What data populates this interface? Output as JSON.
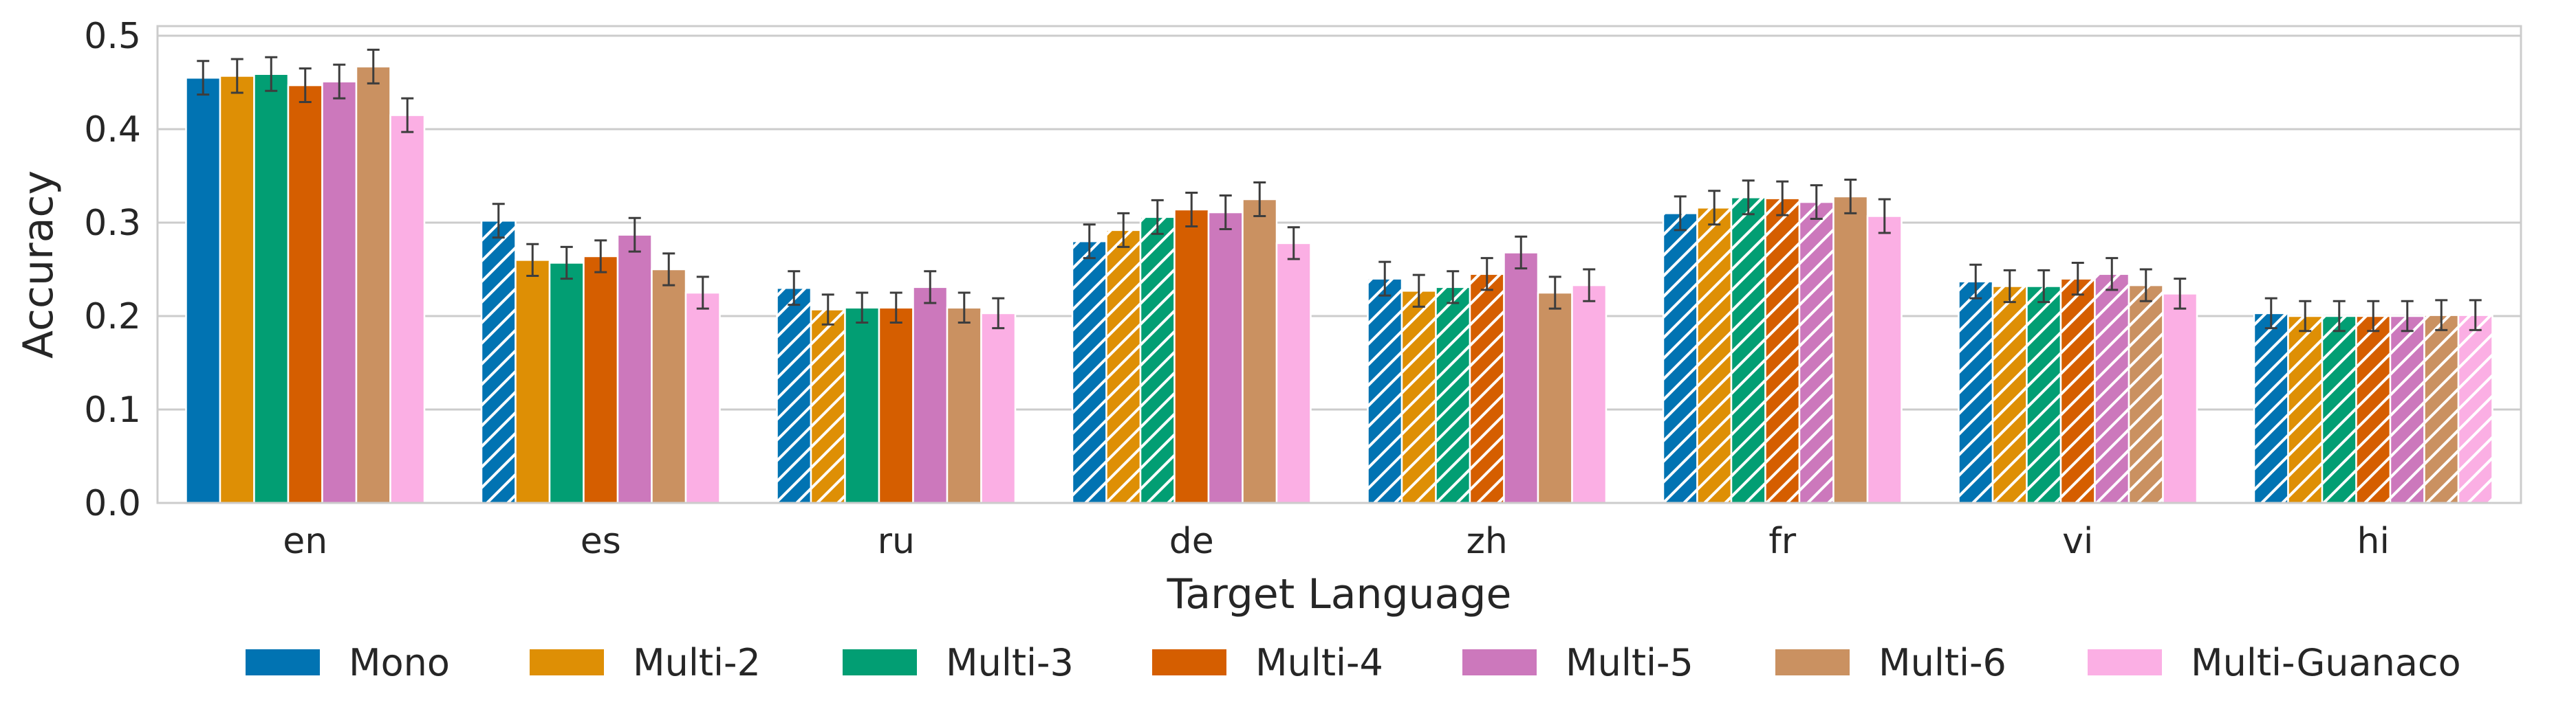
{
  "chart_data": {
    "type": "bar",
    "title": "",
    "xlabel": "Target Language",
    "ylabel": "Accuracy",
    "ylim": [
      0,
      0.51
    ],
    "yticks": [
      0.0,
      0.1,
      0.2,
      0.3,
      0.4,
      0.5
    ],
    "ytick_labels": [
      "0.0",
      "0.1",
      "0.2",
      "0.3",
      "0.4",
      "0.5"
    ],
    "grid": "horizontal",
    "legend_placement": "bottom",
    "categories": [
      "en",
      "es",
      "ru",
      "de",
      "zh",
      "fr",
      "vi",
      "hi"
    ],
    "source_language_hatch_note": false,
    "series": [
      {
        "name": "Mono",
        "color": "#0173b2",
        "values": [
          0.455,
          0.302,
          0.23,
          0.28,
          0.24,
          0.31,
          0.237,
          0.203
        ],
        "errors": [
          0.018,
          0.018,
          0.018,
          0.018,
          0.018,
          0.018,
          0.018,
          0.016
        ],
        "hatched": [
          false,
          true,
          true,
          true,
          true,
          true,
          true,
          true
        ]
      },
      {
        "name": "Multi-2",
        "color": "#de8f05",
        "values": [
          0.457,
          0.26,
          0.207,
          0.292,
          0.227,
          0.316,
          0.232,
          0.2
        ],
        "errors": [
          0.018,
          0.017,
          0.016,
          0.018,
          0.017,
          0.018,
          0.017,
          0.016
        ],
        "hatched": [
          false,
          false,
          true,
          true,
          true,
          true,
          true,
          true
        ]
      },
      {
        "name": "Multi-3",
        "color": "#029e73",
        "values": [
          0.459,
          0.257,
          0.209,
          0.306,
          0.231,
          0.327,
          0.232,
          0.2
        ],
        "errors": [
          0.018,
          0.017,
          0.016,
          0.018,
          0.017,
          0.018,
          0.017,
          0.016
        ],
        "hatched": [
          false,
          false,
          false,
          true,
          true,
          true,
          true,
          true
        ]
      },
      {
        "name": "Multi-4",
        "color": "#d55e00",
        "values": [
          0.447,
          0.264,
          0.209,
          0.314,
          0.245,
          0.326,
          0.24,
          0.2
        ],
        "errors": [
          0.018,
          0.017,
          0.016,
          0.018,
          0.017,
          0.018,
          0.017,
          0.016
        ],
        "hatched": [
          false,
          false,
          false,
          false,
          true,
          true,
          true,
          true
        ]
      },
      {
        "name": "Multi-5",
        "color": "#cc78bc",
        "values": [
          0.451,
          0.287,
          0.231,
          0.311,
          0.268,
          0.322,
          0.245,
          0.2
        ],
        "errors": [
          0.018,
          0.018,
          0.017,
          0.018,
          0.017,
          0.018,
          0.017,
          0.016
        ],
        "hatched": [
          false,
          false,
          false,
          false,
          false,
          true,
          true,
          true
        ]
      },
      {
        "name": "Multi-6",
        "color": "#ca9161",
        "values": [
          0.467,
          0.25,
          0.209,
          0.325,
          0.225,
          0.328,
          0.233,
          0.201
        ],
        "errors": [
          0.018,
          0.017,
          0.016,
          0.018,
          0.017,
          0.018,
          0.017,
          0.016
        ],
        "hatched": [
          false,
          false,
          false,
          false,
          false,
          false,
          true,
          true
        ]
      },
      {
        "name": "Multi-Guanaco",
        "color": "#fbafe4",
        "values": [
          0.415,
          0.225,
          0.203,
          0.278,
          0.233,
          0.307,
          0.224,
          0.201
        ],
        "errors": [
          0.018,
          0.017,
          0.016,
          0.017,
          0.017,
          0.018,
          0.016,
          0.016
        ],
        "hatched": [
          false,
          false,
          false,
          false,
          false,
          false,
          false,
          true
        ]
      }
    ]
  }
}
